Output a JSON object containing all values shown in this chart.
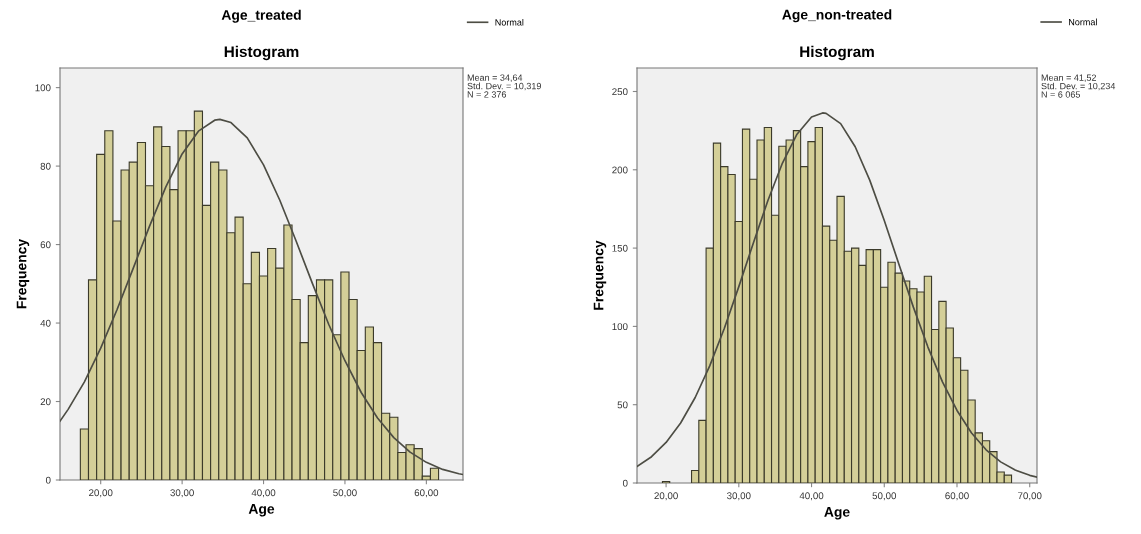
{
  "chart_data": [
    {
      "type": "histogram",
      "title": "Age_treated",
      "subtitle": "Histogram",
      "xlabel": "Age",
      "ylabel": "Frequency",
      "xlim": [
        15,
        64.5
      ],
      "ylim": [
        0,
        105
      ],
      "xticks": [
        {
          "value": 20,
          "label": "20,00"
        },
        {
          "value": 30,
          "label": "30,00"
        },
        {
          "value": 40,
          "label": "40,00"
        },
        {
          "value": 50,
          "label": "50,00"
        },
        {
          "value": 60,
          "label": "60,00"
        }
      ],
      "yticks": [
        0,
        20,
        40,
        60,
        80,
        100
      ],
      "bins": [
        17.5,
        18.5,
        19.5,
        20.5,
        21.5,
        22.5,
        23.5,
        24.5,
        25.5,
        26.5,
        27.5,
        28.5,
        29.5,
        30.5,
        31.5,
        32.5,
        33.5,
        34.5,
        35.5,
        36.5,
        37.5,
        38.5,
        39.5,
        40.5,
        41.5,
        42.5,
        43.5,
        44.5,
        45.5,
        46.5,
        47.5,
        48.5,
        49.5,
        50.5,
        51.5,
        52.5,
        53.5,
        54.5,
        55.5,
        56.5,
        57.5,
        58.5,
        59.5,
        60.5,
        61.5
      ],
      "series": [
        {
          "type": "histogram",
          "color": "#d4cf98",
          "values": [
            13,
            51,
            83,
            89,
            66,
            79,
            81,
            86,
            75,
            90,
            85,
            74,
            89,
            89,
            94,
            70,
            81,
            79,
            63,
            67,
            50,
            58,
            52,
            59,
            54,
            65,
            46,
            35,
            47,
            51,
            51,
            37,
            53,
            46,
            33,
            39,
            35,
            17,
            16,
            7,
            9,
            8,
            1,
            3
          ]
        },
        {
          "type": "line",
          "name": "Normal",
          "color": "#4d4d44",
          "x": [
            15,
            16,
            18,
            20,
            22,
            24,
            26,
            28,
            30,
            32,
            34,
            34.64,
            36,
            38,
            40,
            42,
            44,
            46,
            48,
            50,
            52,
            54,
            56,
            58,
            60,
            62,
            64,
            64.5
          ],
          "values": [
            15.0,
            18.0,
            25.0,
            33.6,
            43.4,
            54.0,
            64.7,
            74.7,
            83.1,
            88.9,
            91.7,
            91.9,
            91.1,
            87.2,
            80.3,
            71.3,
            60.9,
            50.1,
            39.7,
            30.4,
            22.3,
            15.8,
            10.8,
            7.1,
            4.5,
            2.7,
            1.6,
            1.4
          ]
        }
      ],
      "legend": "top right",
      "annotations": [
        "Mean = 34,64",
        "Std. Dev. = 10,319",
        "N = 2 376"
      ]
    },
    {
      "type": "histogram",
      "title": "Age_non-treated",
      "subtitle": "Histogram",
      "xlabel": "Age",
      "ylabel": "Frequency",
      "xlim": [
        16,
        71
      ],
      "ylim": [
        0,
        265
      ],
      "xticks": [
        {
          "value": 20,
          "label": "20,00"
        },
        {
          "value": 30,
          "label": "30,00"
        },
        {
          "value": 40,
          "label": "40,00"
        },
        {
          "value": 50,
          "label": "50,00"
        },
        {
          "value": 60,
          "label": "60,00"
        },
        {
          "value": 70,
          "label": "70,00"
        }
      ],
      "yticks": [
        0,
        50,
        100,
        150,
        200,
        250
      ],
      "bins": [
        19.5,
        20.5,
        21.5,
        22.5,
        23.5,
        24.5,
        25.5,
        26.5,
        27.5,
        28.5,
        29.5,
        30.5,
        31.5,
        32.5,
        33.5,
        34.5,
        35.5,
        36.5,
        37.5,
        38.5,
        39.5,
        40.5,
        41.5,
        42.5,
        43.5,
        44.5,
        45.5,
        46.5,
        47.5,
        48.5,
        49.5,
        50.5,
        51.5,
        52.5,
        53.5,
        54.5,
        55.5,
        56.5,
        57.5,
        58.5,
        59.5,
        60.5,
        61.5,
        62.5,
        63.5,
        64.5,
        65.5,
        66.5,
        67.5
      ],
      "series": [
        {
          "type": "histogram",
          "color": "#d4cf98",
          "values": [
            1,
            0,
            0,
            0,
            8,
            40,
            150,
            217,
            202,
            197,
            167,
            226,
            194,
            219,
            227,
            171,
            215,
            219,
            225,
            202,
            218,
            227,
            164,
            155,
            183,
            148,
            150,
            139,
            149,
            149,
            125,
            141,
            134,
            129,
            124,
            122,
            132,
            98,
            116,
            99,
            80,
            72,
            53,
            32,
            27,
            20,
            7,
            5
          ]
        },
        {
          "type": "line",
          "name": "Normal",
          "color": "#4d4d44",
          "x": [
            16,
            18,
            20,
            22,
            24,
            26,
            28,
            30,
            32,
            34,
            36,
            38,
            40,
            41.52,
            42,
            44,
            46,
            48,
            50,
            52,
            54,
            56,
            58,
            60,
            62,
            64,
            66,
            68,
            70,
            71
          ],
          "values": [
            10.6,
            16.8,
            25.9,
            38.3,
            54.6,
            74.8,
            98.7,
            125.4,
            153.3,
            180.4,
            204.3,
            222.7,
            233.7,
            236.3,
            236.0,
            229.5,
            214.7,
            193.4,
            167.6,
            139.9,
            112.3,
            86.8,
            64.6,
            46.3,
            31.9,
            21.2,
            13.5,
            8.3,
            4.9,
            3.7
          ]
        }
      ],
      "legend": "top right",
      "annotations": [
        "Mean = 41,52",
        "Std. Dev. = 10,234",
        "N = 6 065"
      ]
    }
  ]
}
